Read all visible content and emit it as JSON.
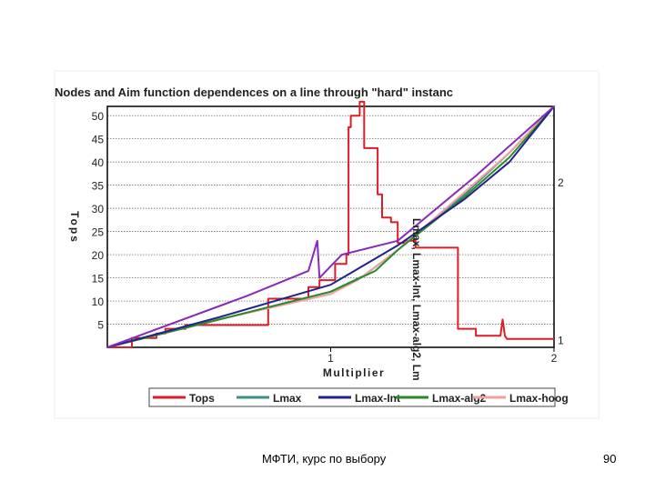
{
  "footer": {
    "caption": "МФТИ, курс по выбору",
    "page_number": "90"
  },
  "chart_data": {
    "type": "line",
    "title": "Nodes and Aim function dependences on a line through \"hard\" instanc",
    "xlabel": "Multiplier",
    "ylabel": "Tops",
    "y2label": "Lmax, Lmax-Int, Lmax-alg2, Lm",
    "xlim": [
      0,
      2
    ],
    "ylim": [
      0,
      52
    ],
    "ytick_values": [
      5,
      10,
      15,
      20,
      25,
      30,
      35,
      40,
      45,
      50
    ],
    "ytick_labels": [
      "5",
      "10",
      "15",
      "20",
      "25",
      "30",
      "35",
      "40",
      "45",
      "50"
    ],
    "xtick_values": [
      1,
      2
    ],
    "xtick_labels": [
      "1",
      "2"
    ],
    "y2_ticks": [
      {
        "label": "2",
        "value": 2,
        "y": 35.5
      },
      {
        "label": "1",
        "value": 1,
        "y": 1.5
      }
    ],
    "grid": true,
    "legend_position": "bottom",
    "colors": {
      "Tops": "#dc1e28",
      "Lmax": "#3f8f86",
      "Lmax-Int": "#23238c",
      "Lmax-alg2": "#2a8a2a",
      "Lmax-hoog": "#f0a0a0",
      "extra": "#8a2ab8"
    },
    "legend": [
      "Tops",
      "Lmax",
      "Lmax-Int",
      "Lmax-alg2",
      "Lmax-hoog"
    ],
    "series": [
      {
        "name": "Tops",
        "axis": "left",
        "x": [
          0,
          0.11,
          0.11,
          0.22,
          0.22,
          0.26,
          0.26,
          0.35,
          0.35,
          0.72,
          0.72,
          0.9,
          0.9,
          0.95,
          0.95,
          1.02,
          1.02,
          1.07,
          1.07,
          1.08,
          1.08,
          1.09,
          1.09,
          1.13,
          1.13,
          1.15,
          1.15,
          1.21,
          1.21,
          1.23,
          1.23,
          1.27,
          1.27,
          1.3,
          1.3,
          1.33,
          1.33,
          1.38,
          1.38,
          1.57,
          1.57,
          1.65,
          1.65,
          1.76,
          1.77,
          1.78,
          1.79,
          2
        ],
        "y": [
          0,
          0,
          2,
          2,
          3,
          3,
          4,
          4,
          4.8,
          4.8,
          10.5,
          10.5,
          13,
          13,
          14.5,
          14.5,
          18,
          18,
          20,
          20,
          47.5,
          47.5,
          50,
          50,
          53,
          53,
          43,
          43,
          33,
          33,
          28,
          28,
          27,
          27,
          22.5,
          22.5,
          23,
          23,
          21.5,
          21.5,
          4,
          4,
          2.5,
          2.5,
          6,
          2.5,
          1.8,
          1.8
        ]
      },
      {
        "name": "Lmax",
        "axis": "right",
        "x": [
          0,
          0.5,
          1,
          1.15,
          1.3,
          1.6,
          1.8,
          2
        ],
        "y": [
          0,
          6,
          12,
          15.5,
          21,
          33,
          42,
          52
        ]
      },
      {
        "name": "Lmax-Int",
        "axis": "right",
        "x": [
          0,
          0.5,
          1,
          1.3,
          1.6,
          1.8,
          2
        ],
        "y": [
          0,
          6.5,
          13.5,
          22,
          32,
          40,
          52
        ]
      },
      {
        "name": "Lmax-alg2",
        "axis": "right",
        "x": [
          0,
          0.5,
          1,
          1.2,
          1.3,
          1.6,
          1.8,
          2
        ],
        "y": [
          0,
          6,
          12,
          16.5,
          21,
          32.5,
          41,
          52
        ]
      },
      {
        "name": "Lmax-hoog",
        "axis": "right",
        "x": [
          0,
          0.5,
          1,
          1.12,
          1.3,
          1.6,
          1.8,
          2
        ],
        "y": [
          0,
          6,
          11.5,
          14.5,
          21,
          33.5,
          42,
          52
        ]
      },
      {
        "name": "extra",
        "axis": "right",
        "x": [
          0,
          0.62,
          0.9,
          0.94,
          0.95,
          1.05,
          1.3,
          1.6,
          1.65,
          2
        ],
        "y": [
          0,
          11,
          16.5,
          23,
          15,
          20,
          23,
          35,
          37,
          52
        ]
      }
    ]
  }
}
